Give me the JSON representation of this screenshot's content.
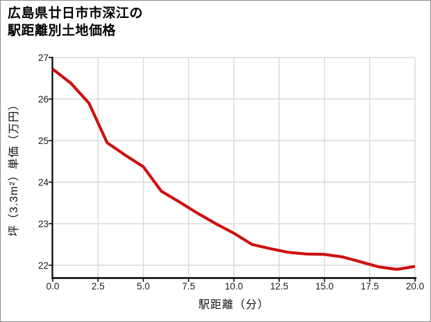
{
  "title": {
    "line1": "広島県廿日市市深江の",
    "line2": "駅距離別土地価格"
  },
  "chart_data": {
    "type": "line",
    "title": "広島県廿日市市深江の駅距離別土地価格",
    "xlabel": "駅距離（分）",
    "ylabel": "坪（3.3m²）単価（万円）",
    "x": [
      0,
      1,
      2,
      3,
      4,
      5,
      6,
      7,
      8,
      9,
      10,
      11,
      12,
      13,
      14,
      15,
      16,
      17,
      18,
      19,
      20
    ],
    "values": [
      26.72,
      26.38,
      25.9,
      24.95,
      24.65,
      24.37,
      23.78,
      23.52,
      23.25,
      23.0,
      22.77,
      22.5,
      22.4,
      22.31,
      22.27,
      22.26,
      22.2,
      22.08,
      21.96,
      21.9,
      21.97
    ],
    "xlim": [
      0,
      20
    ],
    "ylim": [
      21.7,
      27
    ],
    "x_ticks": [
      0,
      2.5,
      5,
      7.5,
      10,
      12.5,
      15,
      17.5,
      20
    ],
    "x_tick_labels": [
      "0.0",
      "2.5",
      "5.0",
      "7.5",
      "10.0",
      "12.5",
      "15.0",
      "17.5",
      "20.0"
    ],
    "y_ticks": [
      22,
      23,
      24,
      25,
      26,
      27
    ],
    "y_tick_labels": [
      "22",
      "23",
      "24",
      "25",
      "26",
      "27"
    ],
    "grid": true,
    "legend_position": "none"
  },
  "colors": {
    "line": "#cc1111",
    "grid": "#d9d9d9",
    "axis": "#000000",
    "tick_text": "#1a1a1a",
    "background": "#ffffff",
    "border": "#8a8a8a"
  }
}
